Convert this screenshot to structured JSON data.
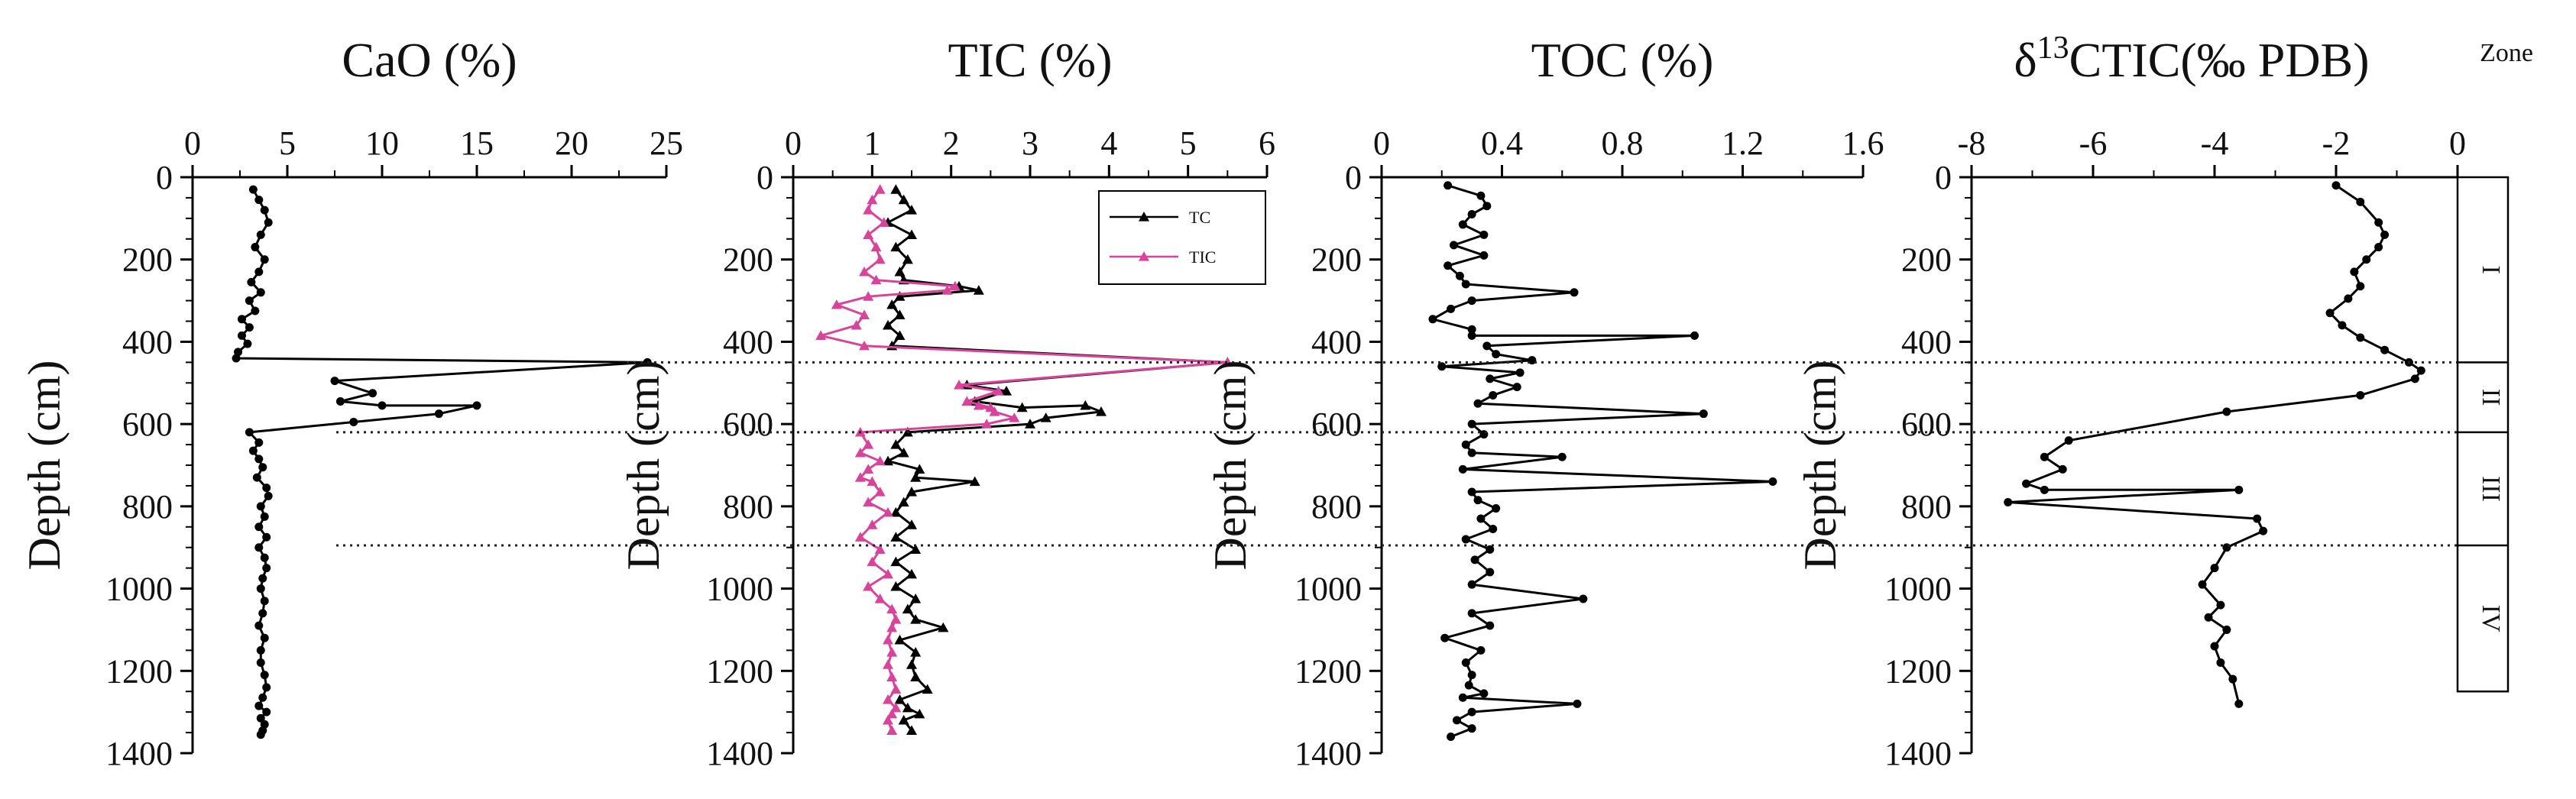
{
  "figure": {
    "zone_header": "Zone"
  },
  "zones": [
    "I",
    "II",
    "III",
    "IV"
  ],
  "zone_boundaries": [
    450,
    620,
    895
  ],
  "chart_data": [
    {
      "type": "line",
      "id": "cao",
      "title": "CaO (%)",
      "xlabel": "",
      "ylabel": "Depth (cm)",
      "xlim": [
        0,
        25
      ],
      "ylim": [
        0,
        1400
      ],
      "xticks": [
        0,
        5,
        10,
        15,
        20,
        25
      ],
      "yticks": [
        0,
        200,
        400,
        600,
        800,
        1000,
        1200,
        1400
      ],
      "series": [
        {
          "name": "CaO",
          "color": "#000000",
          "marker": "circle",
          "x": [
            3.2,
            3.5,
            3.8,
            4.0,
            3.6,
            3.3,
            3.8,
            3.5,
            3.1,
            3.6,
            3.0,
            3.3,
            2.6,
            3.0,
            2.6,
            2.9,
            2.4,
            2.3,
            24.0,
            7.5,
            9.5,
            7.8,
            10.0,
            15.0,
            13.0,
            8.5,
            3.0,
            3.5,
            3.2,
            3.5,
            3.7,
            3.4,
            3.9,
            4.0,
            3.6,
            3.8,
            3.5,
            3.9,
            3.5,
            3.8,
            3.9,
            3.7,
            3.6,
            3.8,
            3.7,
            3.5,
            3.8,
            3.6,
            3.6,
            3.8,
            3.9,
            3.7,
            3.5,
            3.9,
            3.6,
            3.8,
            3.7,
            3.6
          ],
          "y": [
            30,
            55,
            80,
            110,
            140,
            170,
            200,
            230,
            255,
            280,
            300,
            325,
            345,
            365,
            385,
            405,
            425,
            440,
            450,
            495,
            525,
            545,
            555,
            555,
            575,
            595,
            620,
            645,
            665,
            685,
            705,
            730,
            755,
            775,
            800,
            825,
            850,
            875,
            900,
            925,
            950,
            975,
            1000,
            1030,
            1060,
            1090,
            1120,
            1150,
            1180,
            1210,
            1240,
            1265,
            1285,
            1300,
            1315,
            1330,
            1345,
            1355
          ]
        }
      ]
    },
    {
      "type": "line",
      "id": "tic",
      "title": "TIC (%)",
      "xlabel": "",
      "ylabel": "Depth (cm)",
      "xlim": [
        0,
        6
      ],
      "ylim": [
        0,
        1400
      ],
      "xticks": [
        0,
        1,
        2,
        3,
        4,
        5,
        6
      ],
      "yticks": [
        0,
        200,
        400,
        600,
        800,
        1000,
        1200,
        1400
      ],
      "legend": "top-right",
      "series": [
        {
          "name": "TC",
          "color": "#000000",
          "marker": "triangle",
          "x": [
            1.3,
            1.4,
            1.5,
            1.2,
            1.5,
            1.3,
            1.45,
            1.35,
            1.4,
            2.1,
            2.35,
            1.35,
            1.25,
            1.35,
            1.2,
            1.35,
            1.25,
            5.5,
            2.2,
            2.7,
            2.3,
            2.9,
            3.7,
            3.9,
            3.2,
            3.0,
            1.45,
            1.3,
            1.4,
            1.2,
            1.6,
            1.55,
            2.3,
            1.5,
            1.4,
            1.3,
            1.5,
            1.3,
            1.55,
            1.3,
            1.5,
            1.3,
            1.55,
            1.45,
            1.55,
            1.9,
            1.35,
            1.55,
            1.5,
            1.55,
            1.7,
            1.35,
            1.45,
            1.6,
            1.4,
            1.5
          ],
          "y": [
            30,
            55,
            80,
            110,
            140,
            170,
            200,
            230,
            250,
            265,
            275,
            290,
            310,
            335,
            360,
            385,
            410,
            450,
            505,
            520,
            545,
            560,
            555,
            570,
            585,
            600,
            620,
            650,
            670,
            690,
            710,
            730,
            740,
            765,
            790,
            815,
            845,
            875,
            905,
            935,
            965,
            995,
            1025,
            1050,
            1075,
            1095,
            1125,
            1155,
            1185,
            1215,
            1245,
            1270,
            1290,
            1305,
            1320,
            1345
          ]
        },
        {
          "name": "TIC",
          "color": "#d9449b",
          "marker": "triangle",
          "x": [
            1.1,
            1.0,
            0.95,
            1.15,
            0.95,
            1.05,
            1.1,
            0.9,
            1.05,
            2.05,
            1.95,
            0.95,
            0.55,
            0.9,
            0.8,
            0.35,
            0.9,
            5.5,
            2.1,
            2.6,
            2.2,
            2.5,
            2.35,
            2.55,
            2.8,
            2.45,
            0.85,
            0.95,
            0.85,
            1.1,
            0.95,
            0.85,
            1.0,
            1.1,
            0.95,
            1.2,
            1.0,
            0.85,
            1.1,
            1.0,
            1.2,
            0.95,
            1.1,
            1.25,
            1.3,
            1.25,
            1.2,
            1.25,
            1.2,
            1.25,
            1.3,
            1.2,
            1.3,
            1.25,
            1.2,
            1.25
          ],
          "y": [
            30,
            55,
            80,
            110,
            140,
            170,
            200,
            230,
            250,
            265,
            275,
            290,
            310,
            335,
            360,
            385,
            410,
            450,
            505,
            520,
            545,
            560,
            555,
            570,
            585,
            600,
            620,
            650,
            670,
            690,
            710,
            730,
            740,
            765,
            790,
            815,
            845,
            875,
            905,
            935,
            965,
            995,
            1025,
            1050,
            1075,
            1095,
            1125,
            1155,
            1185,
            1215,
            1245,
            1270,
            1290,
            1305,
            1320,
            1345
          ]
        }
      ]
    },
    {
      "type": "line",
      "id": "toc",
      "title": "TOC (%)",
      "xlabel": "",
      "ylabel": "Depth (cm)",
      "xlim": [
        0,
        1.6
      ],
      "ylim": [
        0,
        1400
      ],
      "xticks": [
        0,
        0.4,
        0.8,
        1.2,
        1.6
      ],
      "yticks": [
        0,
        200,
        400,
        600,
        800,
        1000,
        1200,
        1400
      ],
      "series": [
        {
          "name": "TOC",
          "color": "#000000",
          "marker": "circle",
          "x": [
            0.22,
            0.33,
            0.35,
            0.3,
            0.27,
            0.34,
            0.24,
            0.34,
            0.22,
            0.26,
            0.28,
            0.64,
            0.3,
            0.23,
            0.17,
            0.3,
            0.3,
            1.04,
            0.35,
            0.38,
            0.5,
            0.2,
            0.46,
            0.36,
            0.45,
            0.37,
            0.32,
            1.07,
            0.3,
            0.34,
            0.28,
            0.3,
            0.6,
            0.27,
            1.3,
            0.3,
            0.32,
            0.38,
            0.33,
            0.37,
            0.28,
            0.36,
            0.31,
            0.36,
            0.3,
            0.67,
            0.3,
            0.36,
            0.21,
            0.33,
            0.28,
            0.3,
            0.29,
            0.34,
            0.27,
            0.65,
            0.3,
            0.25,
            0.3,
            0.23
          ],
          "y": [
            20,
            45,
            70,
            90,
            115,
            140,
            165,
            190,
            215,
            240,
            260,
            280,
            300,
            320,
            345,
            370,
            385,
            385,
            410,
            430,
            445,
            460,
            475,
            490,
            510,
            530,
            550,
            575,
            600,
            625,
            650,
            670,
            680,
            710,
            740,
            765,
            785,
            805,
            830,
            855,
            880,
            905,
            930,
            960,
            990,
            1025,
            1060,
            1090,
            1120,
            1150,
            1180,
            1210,
            1235,
            1255,
            1265,
            1280,
            1300,
            1320,
            1340,
            1360
          ]
        }
      ]
    },
    {
      "type": "line",
      "id": "d13c",
      "title": "δ13CTIC(‰ PDB)",
      "title_parts": {
        "delta": "δ",
        "superscript": "13",
        "main": "CTIC(‰ PDB)"
      },
      "xlabel": "",
      "ylabel": "Depth (cm)",
      "xlim": [
        -8,
        0
      ],
      "ylim": [
        0,
        1400
      ],
      "xticks": [
        -8,
        -6,
        -4,
        -2,
        0
      ],
      "yticks": [
        0,
        200,
        400,
        600,
        800,
        1000,
        1200,
        1400
      ],
      "series": [
        {
          "name": "δ13C TIC",
          "color": "#000000",
          "marker": "circle",
          "x": [
            -2.0,
            -1.6,
            -1.3,
            -1.2,
            -1.3,
            -1.5,
            -1.7,
            -1.6,
            -1.8,
            -2.1,
            -1.9,
            -1.6,
            -1.2,
            -0.8,
            -0.6,
            -0.7,
            -1.6,
            -3.8,
            -6.4,
            -6.8,
            -6.5,
            -7.1,
            -6.8,
            -3.6,
            -7.4,
            -3.3,
            -3.2,
            -3.8,
            -4.0,
            -4.2,
            -3.9,
            -4.1,
            -3.8,
            -4.0,
            -3.9,
            -3.7,
            -3.6
          ],
          "y": [
            20,
            60,
            110,
            140,
            170,
            200,
            230,
            265,
            295,
            330,
            360,
            390,
            420,
            450,
            470,
            490,
            530,
            570,
            640,
            680,
            710,
            745,
            760,
            760,
            790,
            830,
            860,
            900,
            950,
            990,
            1040,
            1070,
            1100,
            1140,
            1180,
            1220,
            1280
          ]
        }
      ]
    }
  ]
}
